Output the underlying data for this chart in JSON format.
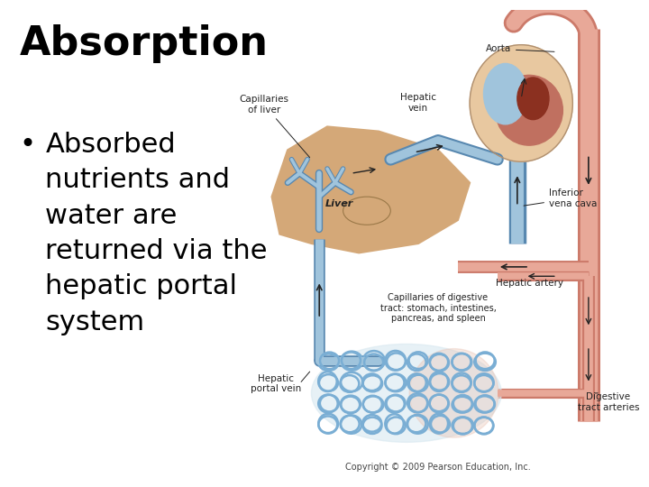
{
  "title": "Absorption",
  "bullet_text": "Absorbed\nnutrients and\nwater are\nreturned via the\nhepatic portal\nsystem",
  "bullet_symbol": "•",
  "title_fontsize": 32,
  "bullet_fontsize": 22,
  "background_color": "#ffffff",
  "text_color": "#000000",
  "copyright_text": "Copyright © 2009 Pearson Education, Inc.",
  "copyright_fontsize": 7,
  "copyright_color": "#444444",
  "salmon": "#D4826E",
  "salmon_light": "#E8A898",
  "salmon_mid": "#CC7A6A",
  "blue_light": "#A0C4DC",
  "blue_mid": "#7AAED4",
  "blue_dark": "#5888B0",
  "liver_color": "#D4A878",
  "liver_outline": "#A07840",
  "cream": "#F0DFC0",
  "dark_red": "#8B3020",
  "heart_outer": "#E8C8A0",
  "heart_inner": "#C07060",
  "label_fs": 7.5,
  "dark": "#222222"
}
